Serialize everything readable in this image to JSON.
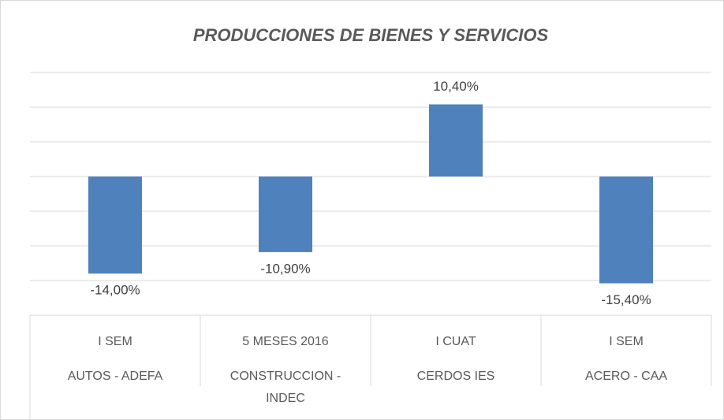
{
  "chart_data": {
    "type": "bar",
    "title": "PRODUCCIONES DE BIENES Y SERVICIOS",
    "categories": [
      [
        "I SEM",
        "AUTOS - ADEFA"
      ],
      [
        "5 MESES 2016",
        "CONSTRUCCION - INDEC"
      ],
      [
        "I CUAT",
        "CERDOS IES"
      ],
      [
        "I SEM",
        "ACERO - CAA"
      ]
    ],
    "values": [
      -14.0,
      -10.9,
      10.4,
      -15.4
    ],
    "value_labels": [
      "-14,00%",
      "-10,90%",
      "10,40%",
      "-15,40%"
    ],
    "color": "#4f81bd",
    "ylim": [
      -20,
      15
    ],
    "yticks": [
      -20,
      -15,
      -10,
      -5,
      0,
      5,
      10,
      15
    ],
    "grid": true
  }
}
